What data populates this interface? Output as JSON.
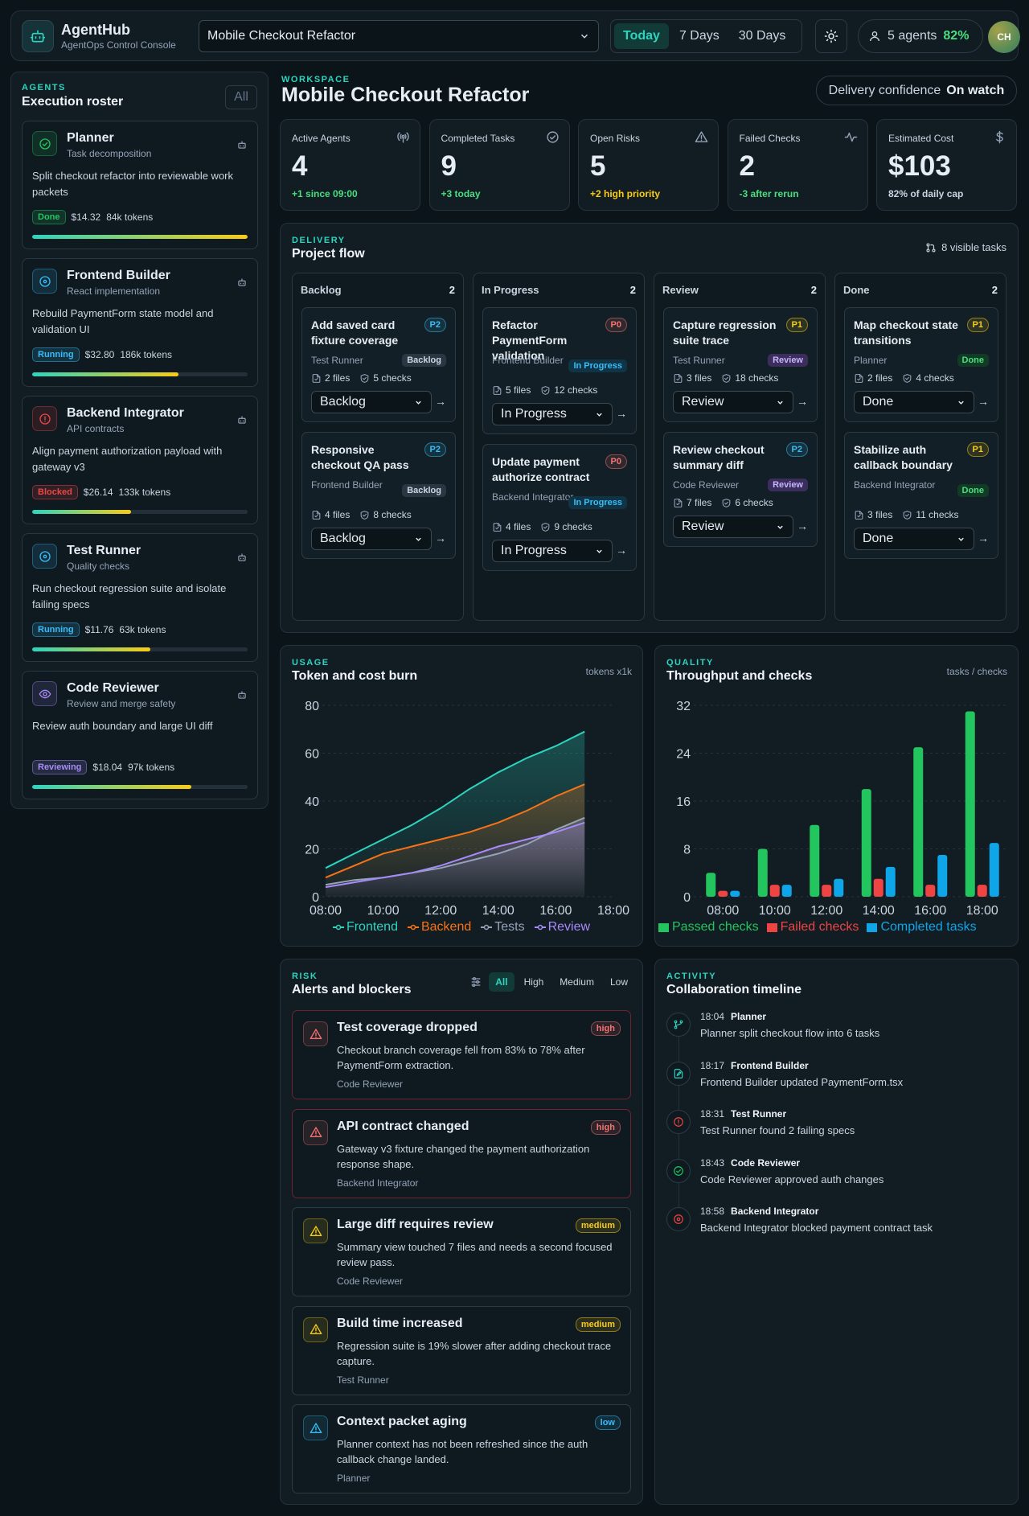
{
  "header": {
    "app_name": "AgentHub",
    "app_subtitle": "AgentOps Control Console",
    "project": "Mobile Checkout Refactor",
    "ranges": [
      "Today",
      "7 Days",
      "30 Days"
    ],
    "active_range": "Today",
    "agents_label": "5 agents",
    "agents_pct": "82%",
    "avatar": "CH"
  },
  "roster": {
    "eyebrow": "AGENTS",
    "title": "Execution roster",
    "filter": "All",
    "agents": [
      {
        "name": "Planner",
        "role": "Task decomposition",
        "desc": "Split checkout refactor into reviewable work packets",
        "status": "Done",
        "cost": "$14.32",
        "tokens": "84k tokens",
        "progress": 1.0,
        "icon": "check-circle-icon",
        "color": "#22c55e"
      },
      {
        "name": "Frontend Builder",
        "role": "React implementation",
        "desc": "Rebuild PaymentForm state model and validation UI",
        "status": "Running",
        "cost": "$32.80",
        "tokens": "186k tokens",
        "progress": 0.68,
        "icon": "target-icon",
        "color": "#38bdf8"
      },
      {
        "name": "Backend Integrator",
        "role": "API contracts",
        "desc": "Align payment authorization payload with gateway v3",
        "status": "Blocked",
        "cost": "$26.14",
        "tokens": "133k tokens",
        "progress": 0.46,
        "icon": "alert-circle-icon",
        "color": "#ef4444"
      },
      {
        "name": "Test Runner",
        "role": "Quality checks",
        "desc": "Run checkout regression suite and isolate failing specs",
        "status": "Running",
        "cost": "$11.76",
        "tokens": "63k tokens",
        "progress": 0.55,
        "icon": "target-icon",
        "color": "#38bdf8"
      },
      {
        "name": "Code Reviewer",
        "role": "Review and merge safety",
        "desc": "Review auth boundary and large UI diff",
        "status": "Reviewing",
        "cost": "$18.04",
        "tokens": "97k tokens",
        "progress": 0.74,
        "icon": "eye-icon",
        "color": "#a78bfa"
      }
    ]
  },
  "workspace": {
    "eyebrow": "WORKSPACE",
    "title": "Mobile Checkout Refactor",
    "confidence_label": "Delivery confidence",
    "confidence_value": "On watch"
  },
  "kpis": [
    {
      "label": "Active Agents",
      "value": "4",
      "sub": "+1 since 09:00",
      "sub_color": "#4ade80",
      "icon": "broadcast-icon"
    },
    {
      "label": "Completed Tasks",
      "value": "9",
      "sub": "+3 today",
      "sub_color": "#4ade80",
      "icon": "check-circle-icon"
    },
    {
      "label": "Open Risks",
      "value": "5",
      "sub": "+2 high priority",
      "sub_color": "#facc15",
      "icon": "warning-triangle-icon"
    },
    {
      "label": "Failed Checks",
      "value": "2",
      "sub": "-3 after rerun",
      "sub_color": "#4ade80",
      "icon": "pulse-icon"
    },
    {
      "label": "Estimated Cost",
      "value": "$103",
      "sub": "82% of daily cap",
      "sub_color": "#cbd5e1",
      "icon": "dollar-icon"
    }
  ],
  "flow": {
    "eyebrow": "DELIVERY",
    "title": "Project flow",
    "visible": "8 visible tasks",
    "columns": [
      {
        "name": "Backlog",
        "count": "2",
        "tasks": [
          {
            "title": "Add saved card fixture coverage",
            "prio": "P2",
            "owner": "Test Runner",
            "status": "Backlog",
            "files": "2 files",
            "checks": "5 checks",
            "select": "Backlog"
          },
          {
            "title": "Responsive checkout QA pass",
            "prio": "P2",
            "owner": "Frontend Builder",
            "status": "Backlog",
            "files": "4 files",
            "checks": "8 checks",
            "select": "Backlog"
          }
        ]
      },
      {
        "name": "In Progress",
        "count": "2",
        "tasks": [
          {
            "title": "Refactor PaymentForm validation",
            "prio": "P0",
            "owner": "Frontend Builder",
            "status": "In Progress",
            "files": "5 files",
            "checks": "12 checks",
            "select": "In Progress"
          },
          {
            "title": "Update payment authorize contract",
            "prio": "P0",
            "owner": "Backend Integrator",
            "status": "In Progress",
            "files": "4 files",
            "checks": "9 checks",
            "select": "In Progress"
          }
        ]
      },
      {
        "name": "Review",
        "count": "2",
        "tasks": [
          {
            "title": "Capture regression suite trace",
            "prio": "P1",
            "owner": "Test Runner",
            "status": "Review",
            "files": "3 files",
            "checks": "18 checks",
            "select": "Review"
          },
          {
            "title": "Review checkout summary diff",
            "prio": "P2",
            "owner": "Code Reviewer",
            "status": "Review",
            "files": "7 files",
            "checks": "6 checks",
            "select": "Review"
          }
        ]
      },
      {
        "name": "Done",
        "count": "2",
        "tasks": [
          {
            "title": "Map checkout state transitions",
            "prio": "P1",
            "owner": "Planner",
            "status": "Done",
            "files": "2 files",
            "checks": "4 checks",
            "select": "Done"
          },
          {
            "title": "Stabilize auth callback boundary",
            "prio": "P1",
            "owner": "Backend Integrator",
            "status": "Done",
            "files": "3 files",
            "checks": "11 checks",
            "select": "Done"
          }
        ]
      }
    ]
  },
  "usage": {
    "eyebrow": "USAGE",
    "title": "Token and cost burn",
    "unit": "tokens x1k"
  },
  "quality": {
    "eyebrow": "QUALITY",
    "title": "Throughput and checks",
    "unit": "tasks / checks"
  },
  "chart_data": [
    {
      "type": "area",
      "title": "Token and cost burn",
      "x": [
        "08:00",
        "09:00",
        "10:00",
        "11:00",
        "12:00",
        "13:00",
        "14:00",
        "15:00",
        "16:00",
        "17:00"
      ],
      "xticks": [
        "08:00",
        "10:00",
        "12:00",
        "14:00",
        "16:00",
        "18:00"
      ],
      "ylim": [
        0,
        80
      ],
      "yticks": [
        0,
        20,
        40,
        60,
        80
      ],
      "series": [
        {
          "name": "Frontend",
          "color": "#2dd4bf",
          "values": [
            12,
            18,
            24,
            30,
            37,
            45,
            52,
            58,
            63,
            69
          ]
        },
        {
          "name": "Backend",
          "color": "#f97316",
          "values": [
            8,
            13,
            18,
            21,
            24,
            27,
            31,
            36,
            42,
            47
          ]
        },
        {
          "name": "Tests",
          "color": "#94a3b8",
          "values": [
            5,
            7,
            8,
            10,
            12,
            15,
            18,
            22,
            28,
            33
          ]
        },
        {
          "name": "Review",
          "color": "#a78bfa",
          "values": [
            4,
            6,
            8,
            10,
            13,
            17,
            21,
            24,
            27,
            31
          ]
        }
      ]
    },
    {
      "type": "bar",
      "title": "Throughput and checks",
      "categories": [
        "08:00",
        "10:00",
        "12:00",
        "14:00",
        "16:00",
        "18:00"
      ],
      "ylim": [
        0,
        32
      ],
      "yticks": [
        0,
        8,
        16,
        24,
        32
      ],
      "series": [
        {
          "name": "Passed checks",
          "color": "#22c55e",
          "values": [
            4,
            8,
            12,
            18,
            25,
            31
          ]
        },
        {
          "name": "Failed checks",
          "color": "#ef4444",
          "values": [
            1,
            2,
            2,
            3,
            2,
            2
          ]
        },
        {
          "name": "Completed tasks",
          "color": "#0ea5e9",
          "values": [
            1,
            2,
            3,
            5,
            7,
            9
          ]
        }
      ]
    }
  ],
  "risk": {
    "eyebrow": "RISK",
    "title": "Alerts and blockers",
    "filters": [
      "All",
      "High",
      "Medium",
      "Low"
    ],
    "alerts": [
      {
        "title": "Test coverage dropped",
        "sev": "high",
        "desc": "Checkout branch coverage fell from 83% to 78% after PaymentForm extraction.",
        "owner": "Code Reviewer"
      },
      {
        "title": "API contract changed",
        "sev": "high",
        "desc": "Gateway v3 fixture changed the payment authorization response shape.",
        "owner": "Backend Integrator"
      },
      {
        "title": "Large diff requires review",
        "sev": "medium",
        "desc": "Summary view touched 7 files and needs a second focused review pass.",
        "owner": "Code Reviewer"
      },
      {
        "title": "Build time increased",
        "sev": "medium",
        "desc": "Regression suite is 19% slower after adding checkout trace capture.",
        "owner": "Test Runner"
      },
      {
        "title": "Context packet aging",
        "sev": "low",
        "desc": "Planner context has not been refreshed since the auth callback change landed.",
        "owner": "Planner"
      }
    ]
  },
  "activity": {
    "eyebrow": "ACTIVITY",
    "title": "Collaboration timeline",
    "events": [
      {
        "time": "18:04",
        "agent": "Planner",
        "text": "Planner split checkout flow into 6 tasks",
        "icon": "branch-icon",
        "color": "#2dd4bf"
      },
      {
        "time": "18:17",
        "agent": "Frontend Builder",
        "text": "Frontend Builder updated PaymentForm.tsx",
        "icon": "edit-file-icon",
        "color": "#2dd4bf"
      },
      {
        "time": "18:31",
        "agent": "Test Runner",
        "text": "Test Runner found 2 failing specs",
        "icon": "alert-circle-icon",
        "color": "#ef4444"
      },
      {
        "time": "18:43",
        "agent": "Code Reviewer",
        "text": "Code Reviewer approved auth changes",
        "icon": "check-circle-icon",
        "color": "#22c55e"
      },
      {
        "time": "18:58",
        "agent": "Backend Integrator",
        "text": "Backend Integrator blocked payment contract task",
        "icon": "stop-circle-icon",
        "color": "#ef4444"
      }
    ]
  }
}
